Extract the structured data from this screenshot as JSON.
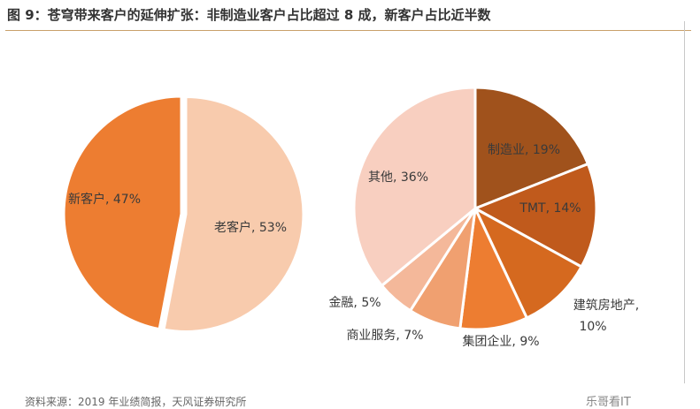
{
  "caption": "图 9：苍穹带来客户的延伸扩张：非制造业客户占比超过 8 成，新客户占比近半数",
  "source": "资料来源：2019 年业绩简报，天风证券研究所",
  "watermark": "乐哥看IT",
  "chart_data": [
    {
      "type": "pie",
      "slices": [
        {
          "label": "老客户",
          "value": 53,
          "display": "老客户, 53%",
          "color": "#f8cbad"
        },
        {
          "label": "新客户",
          "value": 47,
          "display": "新客户, 47%",
          "color": "#ed7d31"
        }
      ]
    },
    {
      "type": "pie",
      "slices": [
        {
          "label": "制造业",
          "value": 19,
          "display": "制造业, 19%",
          "color": "#a0521c"
        },
        {
          "label": "TMT",
          "value": 14,
          "display": "TMT, 14%",
          "color": "#c05a1c"
        },
        {
          "label": "建筑房地产",
          "value": 10,
          "display": "建筑房地产,",
          "display2": "10%",
          "color": "#d5691f"
        },
        {
          "label": "集团企业",
          "value": 9,
          "display": "集团企业, 9%",
          "color": "#ed7d31"
        },
        {
          "label": "商业服务",
          "value": 7,
          "display": "商业服务, 7%",
          "color": "#f0a070"
        },
        {
          "label": "金融",
          "value": 5,
          "display": "金融, 5%",
          "color": "#f4b89a"
        },
        {
          "label": "其他",
          "value": 36,
          "display": "其他, 36%",
          "color": "#f8cfc0"
        }
      ]
    }
  ]
}
